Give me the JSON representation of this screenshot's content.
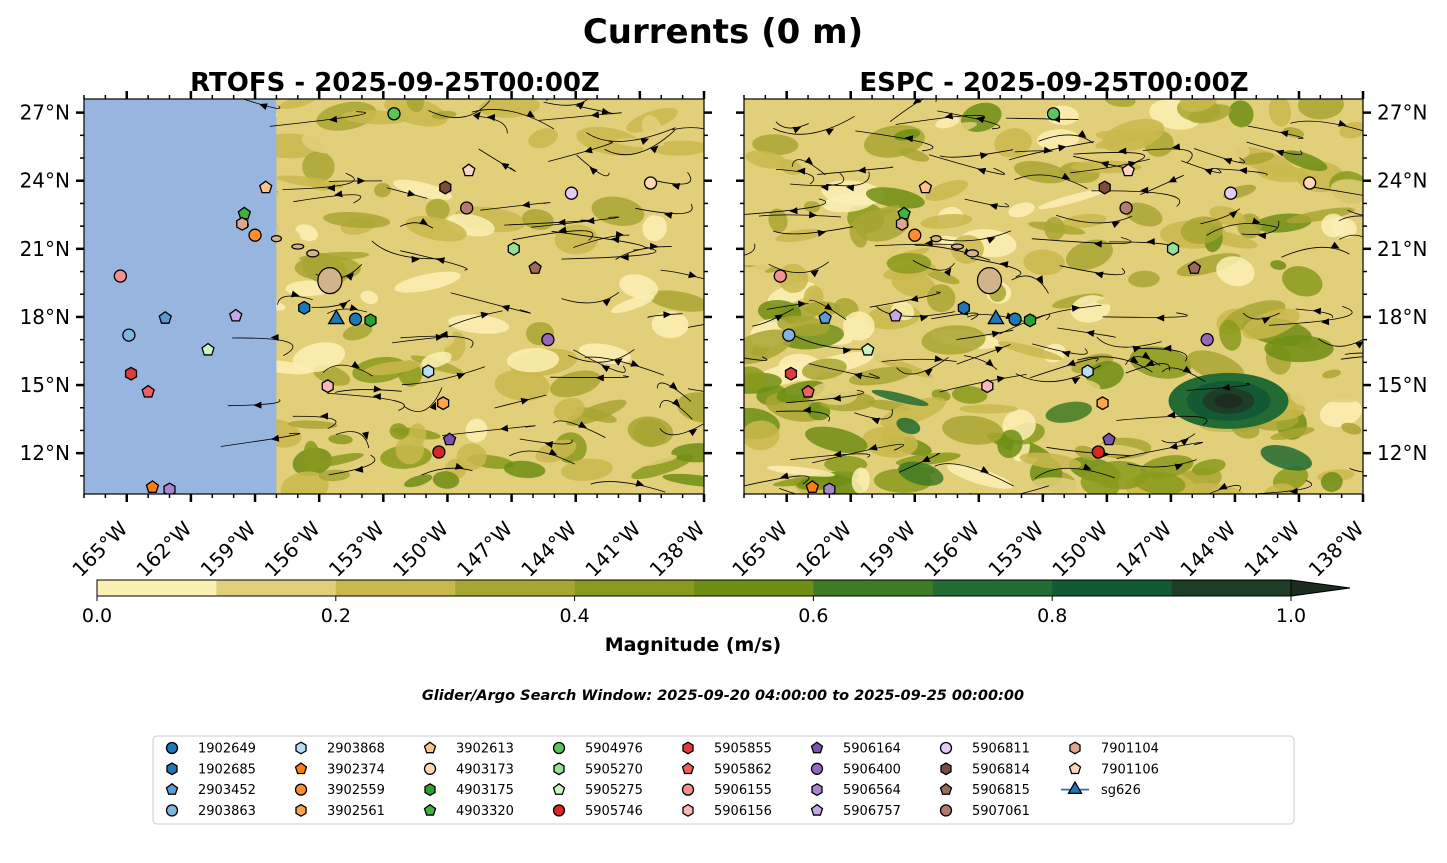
{
  "figure": {
    "title": "Currents (0 m)",
    "window_text": "Glider/Argo Search Window: 2025-09-20 04:00:00 to 2025-09-25 00:00:00"
  },
  "chart_data": {
    "type": "heatmap",
    "panels": [
      {
        "title": "RTOFS - 2025-09-25T00:00Z",
        "model": "RTOFS",
        "lon_range": [
          -167,
          -138
        ],
        "lat_range": [
          10.2,
          27.6
        ],
        "lat_ticks_side": "left",
        "no_data_region_lon": [
          -167,
          -158.0
        ],
        "no_data_color": "#98b5e0"
      },
      {
        "title": "ESPC - 2025-09-25T00:00Z",
        "model": "ESPC",
        "lon_range": [
          -167,
          -138
        ],
        "lat_range": [
          10.2,
          27.6
        ],
        "lat_ticks_side": "right"
      }
    ],
    "xtick_values": [
      -165,
      -162,
      -159,
      -156,
      -153,
      -150,
      -147,
      -144,
      -141,
      -138
    ],
    "xtick_labels": [
      "165°W",
      "162°W",
      "159°W",
      "156°W",
      "153°W",
      "150°W",
      "147°W",
      "144°W",
      "141°W",
      "138°W"
    ],
    "ytick_values": [
      12,
      15,
      18,
      21,
      24,
      27
    ],
    "ytick_labels": [
      "12°N",
      "15°N",
      "18°N",
      "21°N",
      "24°N",
      "27°N"
    ],
    "colorbar": {
      "label": "Magnitude (m/s)",
      "min": 0.0,
      "max": 1.0,
      "extend": "max",
      "tick_values": [
        0.0,
        0.2,
        0.4,
        0.6,
        0.8,
        1.0
      ],
      "tick_labels": [
        "0.0",
        "0.2",
        "0.4",
        "0.6",
        "0.8",
        "1.0"
      ],
      "bin_colors": [
        "#fbf0b4",
        "#e2cf7a",
        "#c9b94c",
        "#a8a632",
        "#8a9a1c",
        "#6f8e14",
        "#3f7a26",
        "#226b33",
        "#125a34",
        "#1e3d26",
        "#1b2b1d"
      ]
    },
    "legend": {
      "placement": "bottom-center",
      "ncols": 9,
      "items": [
        {
          "name": "1902649",
          "color": "#1f77b4",
          "marker": "circle"
        },
        {
          "name": "1902685",
          "color": "#1f77b4",
          "marker": "hexagon"
        },
        {
          "name": "2903452",
          "color": "#5b9bd5",
          "marker": "pentagon"
        },
        {
          "name": "2903863",
          "color": "#7fb6e0",
          "marker": "circle"
        },
        {
          "name": "2903868",
          "color": "#b8dcf2",
          "marker": "hexagon"
        },
        {
          "name": "3902374",
          "color": "#ff7f0e",
          "marker": "pentagon"
        },
        {
          "name": "3902559",
          "color": "#ff8c2e",
          "marker": "circle"
        },
        {
          "name": "3902561",
          "color": "#ffa54f",
          "marker": "hexagon"
        },
        {
          "name": "3902613",
          "color": "#ffc38a",
          "marker": "pentagon"
        },
        {
          "name": "4903173",
          "color": "#ffd9b0",
          "marker": "circle"
        },
        {
          "name": "4903175",
          "color": "#2ca02c",
          "marker": "hexagon"
        },
        {
          "name": "4903320",
          "color": "#3fb33f",
          "marker": "pentagon"
        },
        {
          "name": "5904976",
          "color": "#5cc45c",
          "marker": "circle"
        },
        {
          "name": "5905270",
          "color": "#98e098",
          "marker": "hexagon"
        },
        {
          "name": "5905275",
          "color": "#c8f5c0",
          "marker": "pentagon"
        },
        {
          "name": "5905746",
          "color": "#d62728",
          "marker": "circle"
        },
        {
          "name": "5905855",
          "color": "#dd3b3c",
          "marker": "hexagon"
        },
        {
          "name": "5905862",
          "color": "#ee6060",
          "marker": "pentagon"
        },
        {
          "name": "5906155",
          "color": "#f59090",
          "marker": "circle"
        },
        {
          "name": "5906156",
          "color": "#f8b8b8",
          "marker": "hexagon"
        },
        {
          "name": "5906164",
          "color": "#7b52b0",
          "marker": "pentagon"
        },
        {
          "name": "5906400",
          "color": "#9467bd",
          "marker": "circle"
        },
        {
          "name": "5906564",
          "color": "#a985d0",
          "marker": "hexagon"
        },
        {
          "name": "5906757",
          "color": "#c6a8e8",
          "marker": "pentagon"
        },
        {
          "name": "5906811",
          "color": "#e0cdf7",
          "marker": "circle"
        },
        {
          "name": "5906814",
          "color": "#7a4e3f",
          "marker": "hexagon"
        },
        {
          "name": "5906815",
          "color": "#9a6a5a",
          "marker": "pentagon"
        },
        {
          "name": "5907061",
          "color": "#b47c6e",
          "marker": "circle"
        },
        {
          "name": "7901104",
          "color": "#dba58f",
          "marker": "hexagon"
        },
        {
          "name": "7901106",
          "color": "#fcd6c3",
          "marker": "pentagon"
        },
        {
          "name": "sg626",
          "color": "#1f77b4",
          "marker": "triangle"
        }
      ]
    },
    "floats": [
      {
        "name": "1902649",
        "lon": -154.3,
        "lat": 17.9
      },
      {
        "name": "1902685",
        "lon": -156.7,
        "lat": 18.4
      },
      {
        "name": "2903452",
        "lon": -163.2,
        "lat": 17.95
      },
      {
        "name": "2903863",
        "lon": -164.9,
        "lat": 17.2
      },
      {
        "name": "2903868",
        "lon": -150.9,
        "lat": 15.6
      },
      {
        "name": "3902374",
        "lon": -163.8,
        "lat": 10.5
      },
      {
        "name": "3902559",
        "lon": -159.0,
        "lat": 21.6
      },
      {
        "name": "3902561",
        "lon": -150.2,
        "lat": 14.2
      },
      {
        "name": "3902613",
        "lon": -158.5,
        "lat": 23.7
      },
      {
        "name": "4903173",
        "lon": -140.5,
        "lat": 23.9
      },
      {
        "name": "4903175",
        "lon": -153.6,
        "lat": 17.85
      },
      {
        "name": "4903320",
        "lon": -159.5,
        "lat": 22.55
      },
      {
        "name": "5904976",
        "lon": -152.5,
        "lat": 26.95
      },
      {
        "name": "5905270",
        "lon": -146.9,
        "lat": 21.0
      },
      {
        "name": "5905275",
        "lon": -161.2,
        "lat": 16.55
      },
      {
        "name": "5905746",
        "lon": -150.4,
        "lat": 12.05
      },
      {
        "name": "5905855",
        "lon": -164.8,
        "lat": 15.5
      },
      {
        "name": "5905862",
        "lon": -164.0,
        "lat": 14.7
      },
      {
        "name": "5906155",
        "lon": -165.3,
        "lat": 19.8
      },
      {
        "name": "5906156",
        "lon": -155.6,
        "lat": 14.95
      },
      {
        "name": "5906164",
        "lon": -149.9,
        "lat": 12.6
      },
      {
        "name": "5906400",
        "lon": -145.3,
        "lat": 17.0
      },
      {
        "name": "5906564",
        "lon": -163.0,
        "lat": 10.4
      },
      {
        "name": "5906757",
        "lon": -159.9,
        "lat": 18.05
      },
      {
        "name": "5906811",
        "lon": -144.2,
        "lat": 23.45
      },
      {
        "name": "5906814",
        "lon": -150.1,
        "lat": 23.7
      },
      {
        "name": "5906815",
        "lon": -145.9,
        "lat": 20.15
      },
      {
        "name": "5907061",
        "lon": -149.1,
        "lat": 22.8
      },
      {
        "name": "7901104",
        "lon": -159.6,
        "lat": 22.1
      },
      {
        "name": "7901106",
        "lon": -149.0,
        "lat": 24.45
      },
      {
        "name": "sg626",
        "lon": -155.2,
        "lat": 17.9
      }
    ]
  }
}
